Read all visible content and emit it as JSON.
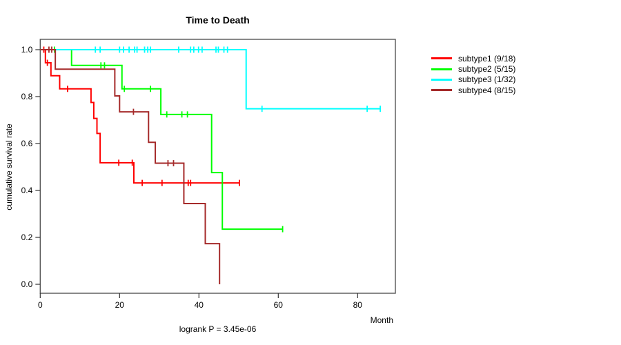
{
  "chart_data": {
    "type": "line",
    "variant": "kaplan-meier-step",
    "title": "Time to Death",
    "xlabel": "Month",
    "ylabel": "cumulative survival rate",
    "footer": "logrank P = 3.45e-06",
    "x_ticks": [
      0,
      20,
      40,
      60,
      80
    ],
    "y_tick_labels": [
      "0.0",
      "0.2",
      "0.4",
      "0.6",
      "0.8",
      "1.0"
    ],
    "xlim": [
      0,
      89.5
    ],
    "ylim": [
      0,
      1
    ],
    "grid": false,
    "legend_position": "right-outside",
    "series": [
      {
        "name": "subtype1",
        "label": "subtype1 (9/18)",
        "color": "#FF0000",
        "levels": [
          [
            0,
            1.0
          ],
          [
            1.3,
            0.944
          ],
          [
            2.7,
            0.889
          ],
          [
            4.9,
            0.833
          ],
          [
            12.8,
            0.775
          ],
          [
            13.5,
            0.707
          ],
          [
            14.3,
            0.643
          ],
          [
            15.1,
            0.518
          ],
          [
            23.6,
            0.432
          ]
        ],
        "end_month": 50.2,
        "censors": [
          [
            0.9,
            1.0
          ],
          [
            1.8,
            0.944
          ],
          [
            6.9,
            0.833
          ],
          [
            19.8,
            0.518
          ],
          [
            23.2,
            0.518
          ],
          [
            25.7,
            0.432
          ],
          [
            30.7,
            0.432
          ],
          [
            37.3,
            0.432
          ],
          [
            37.9,
            0.432
          ],
          [
            50.2,
            0.432
          ]
        ]
      },
      {
        "name": "subtype2",
        "label": "subtype2 (5/15)",
        "color": "#00FF00",
        "levels": [
          [
            0,
            1.0
          ],
          [
            7.9,
            0.933
          ],
          [
            20.6,
            0.833
          ],
          [
            30.4,
            0.724
          ],
          [
            43.2,
            0.476
          ],
          [
            45.9,
            0.235
          ]
        ],
        "end_month": 61.1,
        "censors": [
          [
            3.6,
            1.0
          ],
          [
            15.3,
            0.933
          ],
          [
            16.2,
            0.933
          ],
          [
            21.2,
            0.833
          ],
          [
            27.8,
            0.833
          ],
          [
            31.9,
            0.724
          ],
          [
            35.7,
            0.724
          ],
          [
            37.1,
            0.724
          ],
          [
            61.1,
            0.235
          ]
        ]
      },
      {
        "name": "subtype3",
        "label": "subtype3 (1/32)",
        "color": "#00FFFF",
        "levels": [
          [
            0,
            1.0
          ],
          [
            51.9,
            0.748
          ]
        ],
        "end_month": 85.7,
        "censors": [
          [
            13.9,
            1.0
          ],
          [
            15.1,
            1.0
          ],
          [
            20.0,
            1.0
          ],
          [
            21.0,
            1.0
          ],
          [
            22.4,
            1.0
          ],
          [
            23.8,
            1.0
          ],
          [
            24.4,
            1.0
          ],
          [
            26.3,
            1.0
          ],
          [
            27.1,
            1.0
          ],
          [
            27.8,
            1.0
          ],
          [
            34.9,
            1.0
          ],
          [
            37.9,
            1.0
          ],
          [
            38.7,
            1.0
          ],
          [
            39.9,
            1.0
          ],
          [
            40.8,
            1.0
          ],
          [
            44.3,
            1.0
          ],
          [
            44.9,
            1.0
          ],
          [
            46.3,
            1.0
          ],
          [
            47.2,
            1.0
          ],
          [
            55.9,
            0.748
          ],
          [
            82.4,
            0.748
          ],
          [
            85.7,
            0.748
          ]
        ]
      },
      {
        "name": "subtype4",
        "label": "subtype4 (8/15)",
        "color": "#A52A2A",
        "levels": [
          [
            0,
            1.0
          ],
          [
            3.8,
            0.917
          ],
          [
            18.8,
            0.803
          ],
          [
            20.0,
            0.735
          ],
          [
            27.3,
            0.605
          ],
          [
            29.0,
            0.516
          ],
          [
            36.2,
            0.344
          ],
          [
            41.6,
            0.173
          ],
          [
            45.2,
            0.0
          ]
        ],
        "end_month": 45.2,
        "censors": [
          [
            2.2,
            1.0
          ],
          [
            2.9,
            1.0
          ],
          [
            23.5,
            0.735
          ],
          [
            32.2,
            0.516
          ],
          [
            33.6,
            0.516
          ]
        ]
      }
    ]
  }
}
